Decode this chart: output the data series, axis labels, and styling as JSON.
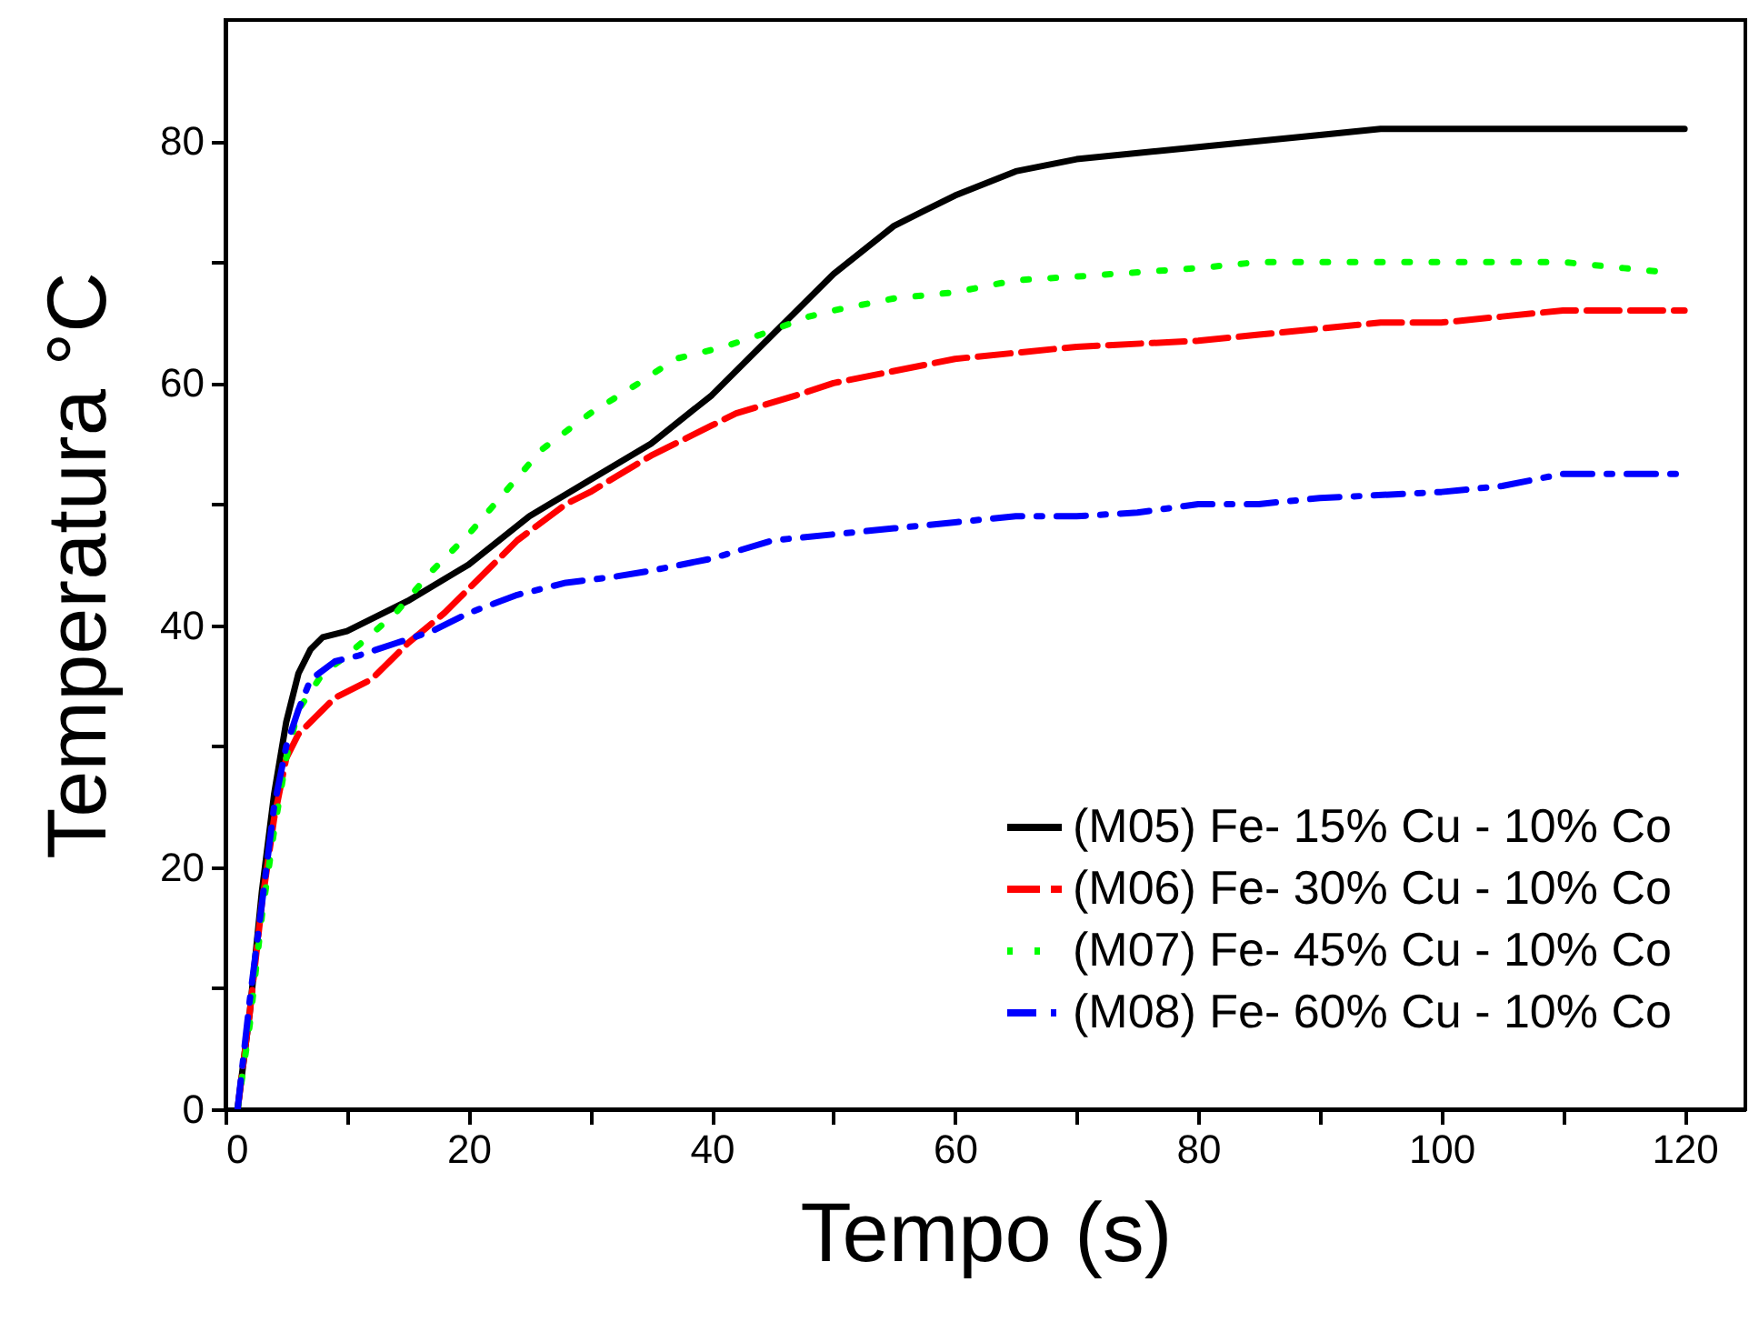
{
  "chart_data": {
    "type": "line",
    "xlabel": "Tempo (s)",
    "ylabel": "Temperatura °C",
    "xlim": [
      0,
      125
    ],
    "ylim": [
      0,
      90
    ],
    "xticks": [
      0,
      {
        "value": 10,
        "label": null
      },
      20,
      {
        "value": 30,
        "label": null
      },
      40,
      {
        "value": 50,
        "label": null
      },
      60,
      {
        "value": 70,
        "label": null
      },
      80,
      {
        "value": 90,
        "label": null
      },
      100,
      {
        "value": 110,
        "label": null
      },
      120
    ],
    "yticks": [
      0,
      {
        "value": 10,
        "label": null
      },
      20,
      {
        "value": 30,
        "label": null
      },
      40,
      {
        "value": 50,
        "label": null
      },
      60,
      {
        "value": 70,
        "label": null
      },
      80
    ],
    "grid": false,
    "legend": "bottom right",
    "series": [
      {
        "name": "(M05) Fe- 15% Cu - 10% Co",
        "color": "#000000",
        "line_style": "solid",
        "x": [
          1,
          2,
          3,
          4,
          5,
          6,
          7,
          8,
          10,
          15,
          20,
          25,
          30,
          35,
          40,
          45,
          50,
          55,
          60,
          65,
          70,
          80,
          90,
          95,
          120
        ],
        "values": [
          0,
          8,
          18,
          26,
          32,
          36,
          38,
          39,
          39.5,
          42,
          45,
          49,
          52,
          55,
          59,
          64,
          69,
          73,
          75.5,
          77.5,
          78.5,
          79.5,
          80.5,
          81,
          81
        ]
      },
      {
        "name": "(M06) Fe- 30% Cu - 10% Co",
        "color": "#ff0000",
        "line_style": "dashed",
        "x": [
          1,
          2,
          3,
          4,
          5,
          6,
          9,
          12,
          15,
          18,
          22,
          24,
          28,
          30,
          35,
          40,
          42,
          47,
          50,
          55,
          60,
          65,
          70,
          80,
          85,
          90,
          95,
          100,
          105,
          110,
          120
        ],
        "values": [
          0,
          8,
          17,
          24,
          29,
          31,
          34,
          35.5,
          38.5,
          41,
          45,
          47,
          50,
          51,
          54,
          56.5,
          57.5,
          59,
          60,
          61,
          62,
          62.5,
          63,
          63.5,
          64,
          64.5,
          65,
          65,
          65.5,
          66,
          66
        ]
      },
      {
        "name": "(M07) Fe- 45% Cu - 10% Co",
        "color": "#00ff00",
        "line_style": "dotted",
        "x": [
          1,
          2,
          3,
          4,
          5,
          6,
          8,
          10,
          14,
          17,
          20,
          23,
          26,
          30,
          34,
          37,
          41,
          44,
          48,
          50,
          55,
          60,
          65,
          70,
          80,
          85,
          90,
          100,
          110,
          115,
          118
        ],
        "values": [
          0,
          7,
          16,
          23,
          29,
          33,
          36,
          37.5,
          41,
          44.5,
          47.5,
          51,
          54.5,
          57.5,
          60,
          62,
          63,
          64,
          65.5,
          66,
          67,
          67.5,
          68.5,
          68.8,
          69.5,
          70,
          70,
          70,
          70,
          69.5,
          69.2
        ]
      },
      {
        "name": "(M08) Fe- 60% Cu - 10% Co",
        "color": "#0000ff",
        "line_style": "dashdot",
        "x": [
          1,
          2,
          3,
          4,
          5,
          6,
          7,
          9,
          11,
          14,
          17,
          20,
          24,
          28,
          32,
          35,
          40,
          45,
          50,
          55,
          60,
          65,
          70,
          75,
          80,
          85,
          90,
          100,
          105,
          110,
          120
        ],
        "values": [
          0,
          9,
          17,
          25,
          30,
          33,
          35.5,
          37,
          37.5,
          38.5,
          39.5,
          41,
          42.5,
          43.5,
          44,
          44.5,
          45.5,
          47,
          47.5,
          48,
          48.5,
          49,
          49,
          49.3,
          50,
          50,
          50.5,
          51,
          51.5,
          52.5,
          52.5
        ]
      }
    ]
  }
}
